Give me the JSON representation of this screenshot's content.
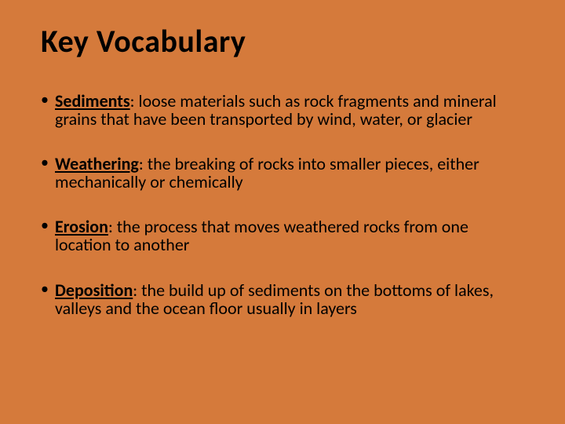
{
  "slide": {
    "background_color": "#d57a3b",
    "text_color": "#000000",
    "title": "Key Vocabulary",
    "title_fontsize": 40,
    "title_fontweight": 700,
    "body_fontsize": 22,
    "body_line_height": 1.05,
    "bullet_char": "•",
    "items": [
      {
        "term": "Sediments",
        "definition": ":  loose materials such as rock fragments and mineral grains that have been transported by wind, water, or glacier"
      },
      {
        "term": "Weathering",
        "definition": ":  the breaking of rocks into smaller pieces, either mechanically or chemically"
      },
      {
        "term": "Erosion",
        "definition": ":  the process that moves weathered rocks from one location to another"
      },
      {
        "term": "Deposition",
        "definition": ":  the build up of sediments on the bottoms of lakes, valleys and the ocean floor usually in layers"
      }
    ]
  }
}
